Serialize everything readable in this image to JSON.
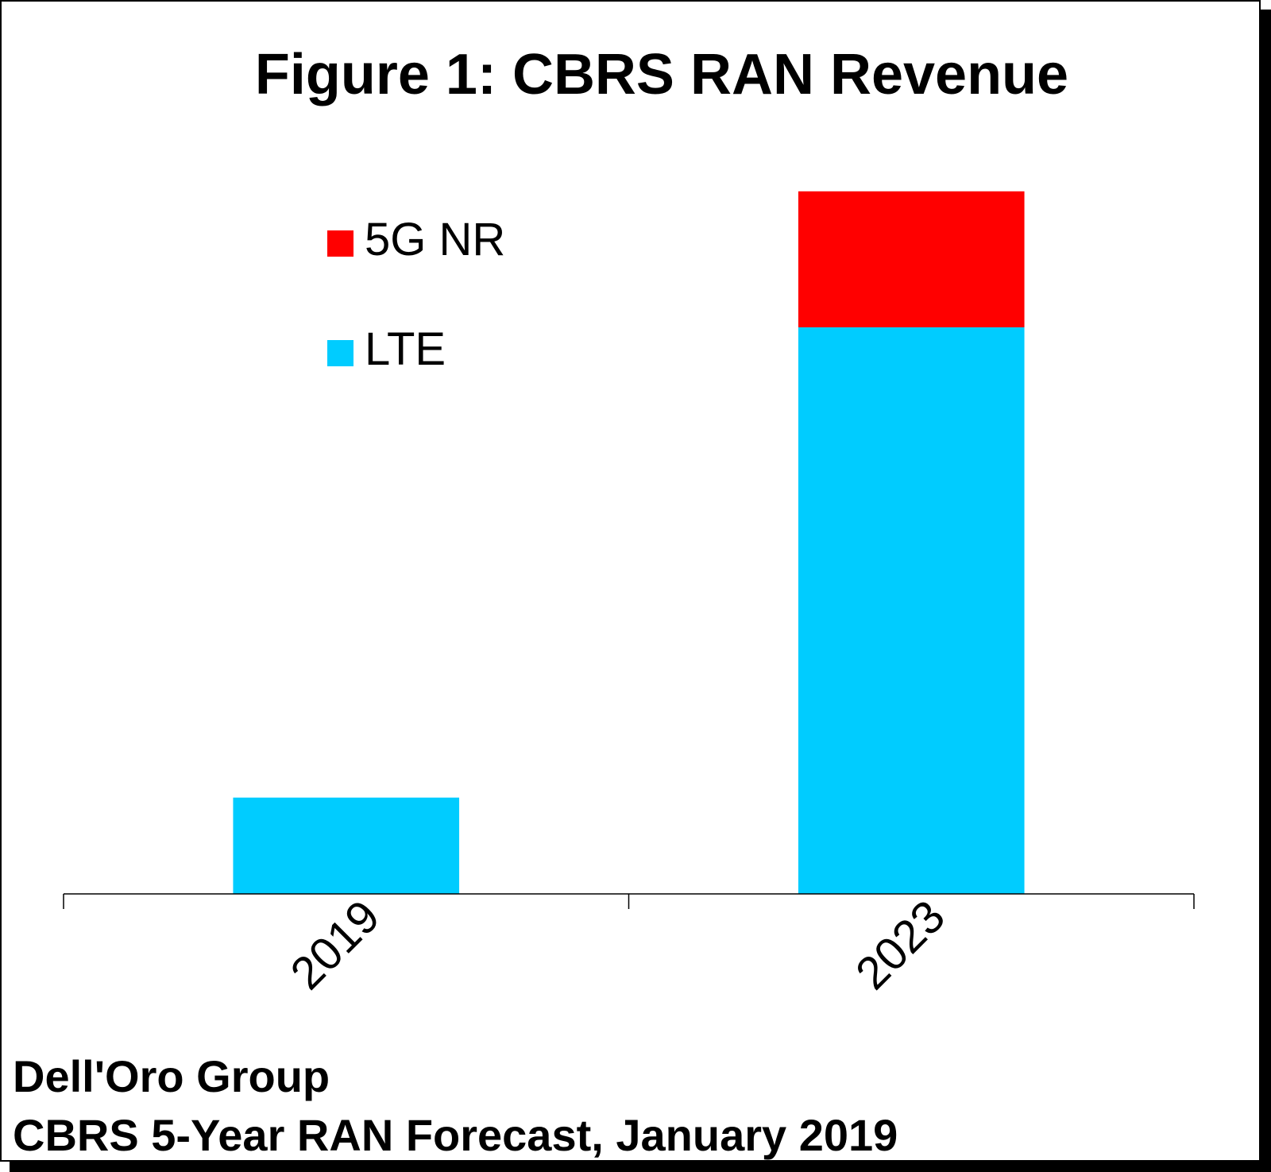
{
  "chart_data": {
    "type": "bar",
    "stacked": true,
    "title": "Figure 1: CBRS RAN Revenue",
    "categories": [
      "2019",
      "2023"
    ],
    "series": [
      {
        "name": "LTE",
        "color": "#00CCFF",
        "values": [
          17,
          100
        ]
      },
      {
        "name": "5G NR",
        "color": "#FF0000",
        "values": [
          0,
          24
        ]
      }
    ],
    "ylim": [
      0,
      130
    ],
    "y_axis_visible": false,
    "grid": false,
    "legend_position": "top-left",
    "xlabel": "",
    "ylabel": ""
  },
  "source": {
    "line1": "Dell'Oro Group",
    "line2": "CBRS 5-Year RAN Forecast, January 2019"
  }
}
